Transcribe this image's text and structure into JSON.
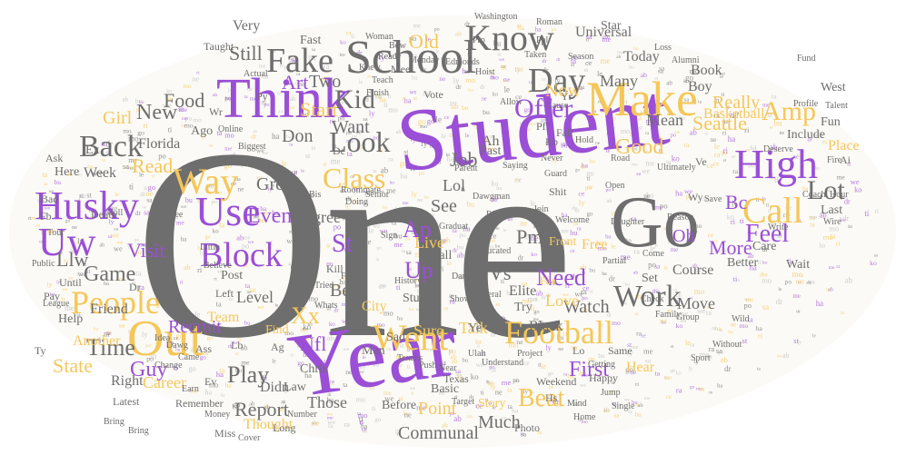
{
  "colors": {
    "gray": "#6e6e6e",
    "purple": "#9a4fd6",
    "gold": "#f5c75a",
    "light_gray": "#bdbdbd",
    "background": "#ffffff"
  },
  "words": [
    {
      "text": "One",
      "color": "gray"
    },
    {
      "text": "Student",
      "color": "purple"
    },
    {
      "text": "Year",
      "color": "purple"
    },
    {
      "text": "Think",
      "color": "purple"
    },
    {
      "text": "School",
      "color": "gray"
    },
    {
      "text": "Make",
      "color": "gold"
    },
    {
      "text": "Go",
      "color": "gray"
    },
    {
      "text": "Out",
      "color": "gold"
    },
    {
      "text": "Husky",
      "color": "purple"
    },
    {
      "text": "Use",
      "color": "purple"
    },
    {
      "text": "Uw",
      "color": "purple"
    },
    {
      "text": "Fake",
      "color": "gray"
    },
    {
      "text": "Know",
      "color": "gray"
    },
    {
      "text": "Day",
      "color": "gray"
    },
    {
      "text": "Way",
      "color": "gold"
    },
    {
      "text": "Back",
      "color": "gray"
    },
    {
      "text": "People",
      "color": "gold"
    },
    {
      "text": "High",
      "color": "purple"
    },
    {
      "text": "Call",
      "color": "gold"
    },
    {
      "text": "Football",
      "color": "gold"
    },
    {
      "text": "Work",
      "color": "gray"
    },
    {
      "text": "Block",
      "color": "purple"
    },
    {
      "text": "Look",
      "color": "gray"
    },
    {
      "text": "Class",
      "color": "gold"
    },
    {
      "text": "Kid",
      "color": "gray"
    },
    {
      "text": "Offer",
      "color": "purple"
    },
    {
      "text": "Amp",
      "color": "gold"
    },
    {
      "text": "Time",
      "color": "gray"
    },
    {
      "text": "Good",
      "color": "gold"
    },
    {
      "text": "Lot",
      "color": "gray"
    },
    {
      "text": "Feel",
      "color": "purple"
    },
    {
      "text": "Beat",
      "color": "gold"
    },
    {
      "text": "Play",
      "color": "gray"
    },
    {
      "text": "Game",
      "color": "gray"
    },
    {
      "text": "Visit",
      "color": "purple"
    },
    {
      "text": "Need",
      "color": "purple"
    },
    {
      "text": "New",
      "color": "gray"
    },
    {
      "text": "Food",
      "color": "gray"
    },
    {
      "text": "Art",
      "color": "purple"
    },
    {
      "text": "Two",
      "color": "gray"
    },
    {
      "text": "Old",
      "color": "gold"
    },
    {
      "text": "Still",
      "color": "gray"
    },
    {
      "text": "Now",
      "color": "gold"
    },
    {
      "text": "Start",
      "color": "gold"
    },
    {
      "text": "Job",
      "color": "gray"
    },
    {
      "text": "Seattle",
      "color": "gold"
    },
    {
      "text": "Even",
      "color": "purple"
    },
    {
      "text": "Llw",
      "color": "gray"
    },
    {
      "text": "Guy",
      "color": "purple"
    },
    {
      "text": "State",
      "color": "gold"
    },
    {
      "text": "Report",
      "color": "gray"
    },
    {
      "text": "Communal",
      "color": "gray"
    },
    {
      "text": "Point",
      "color": "gold"
    },
    {
      "text": "First",
      "color": "purple"
    },
    {
      "text": "Much",
      "color": "gray"
    },
    {
      "text": "Best",
      "color": "gray"
    },
    {
      "text": "Level",
      "color": "gray"
    },
    {
      "text": "Recruit",
      "color": "purple"
    },
    {
      "text": "Nfl",
      "color": "purple"
    },
    {
      "text": "Xx",
      "color": "gold"
    },
    {
      "text": "Went",
      "color": "gold"
    },
    {
      "text": "St",
      "color": "purple"
    },
    {
      "text": "Ap",
      "color": "purple"
    },
    {
      "text": "Up",
      "color": "purple"
    },
    {
      "text": "Pm",
      "color": "gray"
    },
    {
      "text": "Vs",
      "color": "gray"
    },
    {
      "text": "Oh",
      "color": "purple"
    },
    {
      "text": "More",
      "color": "purple"
    },
    {
      "text": "Bc",
      "color": "purple"
    },
    {
      "text": "Watch",
      "color": "gray"
    },
    {
      "text": "Love",
      "color": "gold"
    },
    {
      "text": "Move",
      "color": "gray"
    },
    {
      "text": "Black",
      "color": "gray"
    },
    {
      "text": "Elite",
      "color": "gray"
    },
    {
      "text": "See",
      "color": "gray"
    },
    {
      "text": "Live",
      "color": "gold"
    },
    {
      "text": "Lol",
      "color": "gray"
    },
    {
      "text": "Degree",
      "color": "gray"
    },
    {
      "text": "Great",
      "color": "gray"
    },
    {
      "text": "Don",
      "color": "gray"
    },
    {
      "text": "Want",
      "color": "gray"
    },
    {
      "text": "Read",
      "color": "gold"
    },
    {
      "text": "Girl",
      "color": "gold"
    },
    {
      "text": "Florida",
      "color": "gray"
    },
    {
      "text": "Week",
      "color": "gray"
    },
    {
      "text": "Friend",
      "color": "gray"
    },
    {
      "text": "Team",
      "color": "gold"
    },
    {
      "text": "Career",
      "color": "gold"
    },
    {
      "text": "Right",
      "color": "gray"
    },
    {
      "text": "Thought",
      "color": "gold"
    },
    {
      "text": "Basketball",
      "color": "gold"
    },
    {
      "text": "Boy",
      "color": "gray"
    },
    {
      "text": "Mean",
      "color": "gray"
    },
    {
      "text": "Really",
      "color": "gold"
    },
    {
      "text": "Book",
      "color": "gray"
    },
    {
      "text": "Many",
      "color": "gray"
    },
    {
      "text": "Today",
      "color": "gray"
    },
    {
      "text": "Universal",
      "color": "gray"
    },
    {
      "text": "Star",
      "color": "gray"
    },
    {
      "text": "Very",
      "color": "gray"
    },
    {
      "text": "Taught",
      "color": "gray"
    },
    {
      "text": "Fast",
      "color": "gray"
    },
    {
      "text": "Vote",
      "color": "gray"
    },
    {
      "text": "Meet",
      "color": "gray"
    },
    {
      "text": "Ah",
      "color": "gray"
    },
    {
      "text": "Past",
      "color": "gray"
    },
    {
      "text": "Fall",
      "color": "gray"
    },
    {
      "text": "Fun",
      "color": "gray"
    },
    {
      "text": "Include",
      "color": "gray"
    },
    {
      "text": "West",
      "color": "gray"
    },
    {
      "text": "Place",
      "color": "gold"
    },
    {
      "text": "Last",
      "color": "gray"
    },
    {
      "text": "Wait",
      "color": "gray"
    },
    {
      "text": "Care",
      "color": "gray"
    },
    {
      "text": "Better",
      "color": "gray"
    },
    {
      "text": "Course",
      "color": "gray"
    },
    {
      "text": "Set",
      "color": "gray"
    },
    {
      "text": "Free",
      "color": "gold"
    },
    {
      "text": "Try",
      "color": "gray"
    },
    {
      "text": "Study",
      "color": "gray"
    },
    {
      "text": "Sure",
      "color": "gold"
    },
    {
      "text": "Talk",
      "color": "gold"
    },
    {
      "text": "Ball",
      "color": "gray"
    },
    {
      "text": "City",
      "color": "gold"
    },
    {
      "text": "Sad",
      "color": "gray"
    },
    {
      "text": "Man",
      "color": "gray"
    },
    {
      "text": "Chris",
      "color": "gray"
    },
    {
      "text": "Law",
      "color": "gray"
    },
    {
      "text": "Didn",
      "color": "gray"
    },
    {
      "text": "Those",
      "color": "gray"
    },
    {
      "text": "Long",
      "color": "gray"
    },
    {
      "text": "Miss",
      "color": "gray"
    },
    {
      "text": "Before",
      "color": "gray"
    },
    {
      "text": "Basic",
      "color": "gray"
    },
    {
      "text": "Weekend",
      "color": "gray"
    },
    {
      "text": "Texas",
      "color": "gray"
    },
    {
      "text": "Story",
      "color": "gold"
    },
    {
      "text": "Photo",
      "color": "gray"
    },
    {
      "text": "Same",
      "color": "gray"
    },
    {
      "text": "Hear",
      "color": "gold"
    },
    {
      "text": "Happy",
      "color": "gray"
    },
    {
      "text": "Front",
      "color": "gold"
    },
    {
      "text": "Kill",
      "color": "gray"
    },
    {
      "text": "Post",
      "color": "gray"
    },
    {
      "text": "Left",
      "color": "gray"
    },
    {
      "text": "Find",
      "color": "gold"
    },
    {
      "text": "Ass",
      "color": "gray"
    },
    {
      "text": "Death",
      "color": "gray"
    },
    {
      "text": "Help",
      "color": "gray"
    },
    {
      "text": "Ask",
      "color": "gray"
    },
    {
      "text": "Here",
      "color": "gray"
    },
    {
      "text": "Bad",
      "color": "gray"
    },
    {
      "text": "Ago",
      "color": "gray"
    },
    {
      "text": "Pay",
      "color": "gray"
    },
    {
      "text": "Until",
      "color": "gray"
    },
    {
      "text": "Lead",
      "color": "gray"
    },
    {
      "text": "Consider",
      "color": "gray"
    },
    {
      "text": "Idea",
      "color": "gray"
    },
    {
      "text": "Earn",
      "color": "gray"
    },
    {
      "text": "Remember",
      "color": "gray"
    },
    {
      "text": "Money",
      "color": "gray"
    },
    {
      "text": "Latest",
      "color": "gray"
    },
    {
      "text": "Another",
      "color": "gold"
    },
    {
      "text": "Seen",
      "color": "gray"
    },
    {
      "text": "Road",
      "color": "gray"
    },
    {
      "text": "Open",
      "color": "gray"
    },
    {
      "text": "Dawgman",
      "color": "gray"
    },
    {
      "text": "Parent",
      "color": "gray"
    },
    {
      "text": "Never",
      "color": "gray"
    },
    {
      "text": "Online",
      "color": "gray"
    },
    {
      "text": "Senior",
      "color": "gray"
    },
    {
      "text": "Biggest",
      "color": "gray"
    },
    {
      "text": "Edmonds",
      "color": "gray"
    },
    {
      "text": "Monday",
      "color": "gray"
    },
    {
      "text": "Ready",
      "color": "gray"
    },
    {
      "text": "Actual",
      "color": "gray"
    },
    {
      "text": "Season",
      "color": "gray"
    },
    {
      "text": "Roman",
      "color": "gray"
    },
    {
      "text": "Washington",
      "color": "gray"
    },
    {
      "text": "Loss",
      "color": "gray"
    },
    {
      "text": "Fund",
      "color": "gray"
    },
    {
      "text": "Fire",
      "color": "gray"
    },
    {
      "text": "Coach",
      "color": "gray"
    },
    {
      "text": "Write",
      "color": "gray"
    },
    {
      "text": "Save",
      "color": "gray"
    },
    {
      "text": "Check",
      "color": "gray"
    },
    {
      "text": "Family",
      "color": "gray"
    },
    {
      "text": "Group",
      "color": "gray"
    },
    {
      "text": "Shit",
      "color": "gray"
    },
    {
      "text": "Join",
      "color": "gray"
    },
    {
      "text": "Fan",
      "color": "gold"
    },
    {
      "text": "Act",
      "color": "gray"
    },
    {
      "text": "Graduat",
      "color": "gray"
    },
    {
      "text": "Educated",
      "color": "gray"
    },
    {
      "text": "General",
      "color": "gray"
    },
    {
      "text": "Risk",
      "color": "gray"
    },
    {
      "text": "History",
      "color": "gray"
    },
    {
      "text": "Dance",
      "color": "gray"
    },
    {
      "text": "Texans",
      "color": "gray"
    },
    {
      "text": "Push",
      "color": "gray"
    },
    {
      "text": "Near",
      "color": "gray"
    },
    {
      "text": "Understand",
      "color": "gray"
    },
    {
      "text": "Jump",
      "color": "gray"
    },
    {
      "text": "Sport",
      "color": "gray"
    },
    {
      "text": "Without",
      "color": "gray"
    },
    {
      "text": "Wild",
      "color": "gray"
    },
    {
      "text": "Tour",
      "color": "gray"
    },
    {
      "text": "Public",
      "color": "gray"
    },
    {
      "text": "Six",
      "color": "gray"
    },
    {
      "text": "Coll",
      "color": "gray"
    },
    {
      "text": "League",
      "color": "gray"
    },
    {
      "text": "Talent",
      "color": "gray"
    },
    {
      "text": "Hour",
      "color": "gray"
    },
    {
      "text": "Show",
      "color": "gray"
    },
    {
      "text": "Hold",
      "color": "gray"
    },
    {
      "text": "Cause",
      "color": "gray"
    },
    {
      "text": "Saying",
      "color": "gray"
    },
    {
      "text": "Welcome",
      "color": "gray"
    },
    {
      "text": "Target",
      "color": "gray"
    },
    {
      "text": "Project",
      "color": "gray"
    },
    {
      "text": "Getting",
      "color": "gray"
    },
    {
      "text": "Mind",
      "color": "gray"
    },
    {
      "text": "Home",
      "color": "gray"
    },
    {
      "text": "Number",
      "color": "gray"
    },
    {
      "text": "Cover",
      "color": "gray"
    },
    {
      "text": "Single",
      "color": "gray"
    },
    {
      "text": "Dawg",
      "color": "gray"
    },
    {
      "text": "Came",
      "color": "gray"
    },
    {
      "text": "Change",
      "color": "gray"
    },
    {
      "text": "Daughter",
      "color": "gray"
    },
    {
      "text": "Come",
      "color": "gray"
    },
    {
      "text": "Partial",
      "color": "gray"
    },
    {
      "text": "Doing",
      "color": "gray"
    },
    {
      "text": "Believe",
      "color": "gray"
    },
    {
      "text": "Roommate",
      "color": "gray"
    },
    {
      "text": "Finish",
      "color": "gray"
    },
    {
      "text": "Fellers",
      "color": "gray"
    },
    {
      "text": "Whats",
      "color": "gray"
    },
    {
      "text": "Little",
      "color": "gray"
    },
    {
      "text": "Three",
      "color": "gray"
    },
    {
      "text": "Bring",
      "color": "gray"
    },
    {
      "text": "Woman",
      "color": "gray"
    },
    {
      "text": "Knew",
      "color": "gray"
    },
    {
      "text": "Teach",
      "color": "gray"
    },
    {
      "text": "Allow",
      "color": "gray"
    },
    {
      "text": "Poll",
      "color": "gray"
    },
    {
      "text": "Sign",
      "color": "gray"
    },
    {
      "text": "Fight",
      "color": "gray"
    },
    {
      "text": "Tried",
      "color": "gray"
    },
    {
      "text": "Bow",
      "color": "gray"
    },
    {
      "text": "Taken",
      "color": "gray"
    },
    {
      "text": "Hoist",
      "color": "gray"
    },
    {
      "text": "Alumni",
      "color": "gray"
    },
    {
      "text": "Wire",
      "color": "gray"
    },
    {
      "text": "Deserve",
      "color": "gray"
    },
    {
      "text": "Profile",
      "color": "gray"
    },
    {
      "text": "Bring",
      "color": "gray"
    },
    {
      "text": "Guard",
      "color": "gray"
    },
    {
      "text": "Reason",
      "color": "gray"
    },
    {
      "text": "Ultimately",
      "color": "gray"
    },
    {
      "text": "Ulah",
      "color": "gray"
    },
    {
      "text": "Ex",
      "color": "gray"
    },
    {
      "text": "Yr",
      "color": "gray"
    },
    {
      "text": "Rb",
      "color": "gray"
    },
    {
      "text": "Fb",
      "color": "gray"
    },
    {
      "text": "Dr",
      "color": "gray"
    },
    {
      "text": "Ai",
      "color": "gray"
    },
    {
      "text": "Ve",
      "color": "gray"
    },
    {
      "text": "Ye",
      "color": "gray"
    },
    {
      "text": "De",
      "color": "gray"
    },
    {
      "text": "Lo",
      "color": "gray"
    },
    {
      "text": "Pff",
      "color": "gray"
    },
    {
      "text": "Py",
      "color": "gray"
    },
    {
      "text": "Wr",
      "color": "gray"
    },
    {
      "text": "Wy",
      "color": "gray"
    },
    {
      "text": "Ty",
      "color": "gray"
    },
    {
      "text": "Lb",
      "color": "gray"
    },
    {
      "text": "Bis",
      "color": "gray"
    },
    {
      "text": "Ag",
      "color": "gray"
    },
    {
      "text": "Hs",
      "color": "gray"
    },
    {
      "text": "Ev",
      "color": "gray"
    },
    {
      "text": "Ppl",
      "color": "gray"
    },
    {
      "text": "Pro",
      "color": "gray"
    }
  ]
}
